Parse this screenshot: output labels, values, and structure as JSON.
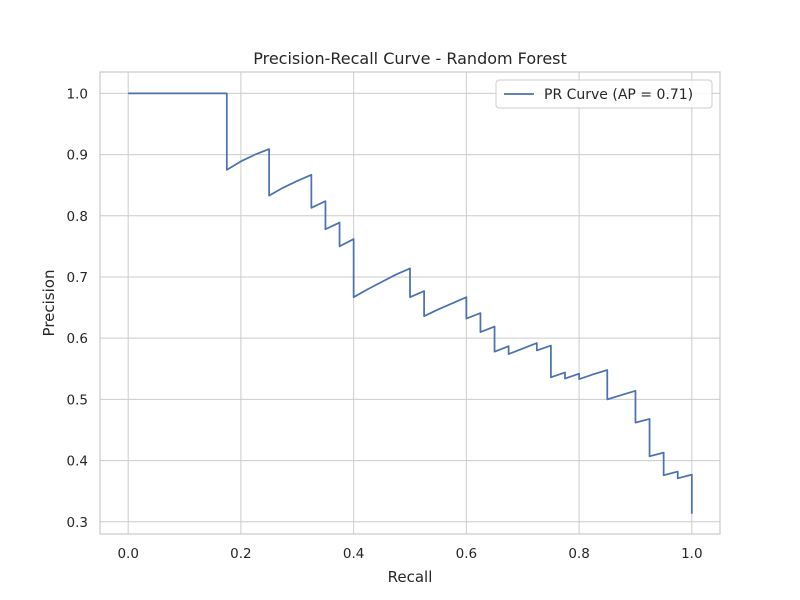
{
  "chart_data": {
    "type": "line",
    "title": "Precision-Recall Curve - Random Forest",
    "xlabel": "Recall",
    "ylabel": "Precision",
    "xlim": [
      -0.05,
      1.05
    ],
    "ylim": [
      0.28,
      1.035
    ],
    "xticks": [
      0.0,
      0.2,
      0.4,
      0.6,
      0.8,
      1.0
    ],
    "xtick_labels": [
      "0.0",
      "0.2",
      "0.4",
      "0.6",
      "0.8",
      "1.0"
    ],
    "yticks": [
      0.3,
      0.4,
      0.5,
      0.6,
      0.7,
      0.8,
      0.9,
      1.0
    ],
    "ytick_labels": [
      "0.3",
      "0.4",
      "0.5",
      "0.6",
      "0.7",
      "0.8",
      "0.9",
      "1.0"
    ],
    "grid": true,
    "legend_position": "top-right",
    "series": [
      {
        "name": "PR Curve (AP = 0.71)",
        "color": "#4c72b0",
        "x": [
          0.0,
          0.175,
          0.175,
          0.2,
          0.225,
          0.25,
          0.25,
          0.275,
          0.3,
          0.325,
          0.325,
          0.35,
          0.35,
          0.375,
          0.375,
          0.4,
          0.4,
          0.425,
          0.45,
          0.475,
          0.5,
          0.5,
          0.525,
          0.525,
          0.55,
          0.575,
          0.6,
          0.6,
          0.625,
          0.625,
          0.65,
          0.65,
          0.675,
          0.675,
          0.7,
          0.725,
          0.725,
          0.75,
          0.75,
          0.775,
          0.775,
          0.8,
          0.8,
          0.825,
          0.85,
          0.85,
          0.875,
          0.9,
          0.9,
          0.925,
          0.925,
          0.95,
          0.95,
          0.975,
          0.975,
          1.0,
          1.0
        ],
        "y": [
          1.0,
          1.0,
          0.875,
          0.889,
          0.9,
          0.909,
          0.833,
          0.846,
          0.857,
          0.867,
          0.813,
          0.824,
          0.778,
          0.789,
          0.75,
          0.762,
          0.667,
          0.68,
          0.692,
          0.704,
          0.714,
          0.667,
          0.677,
          0.636,
          0.647,
          0.657,
          0.667,
          0.632,
          0.641,
          0.61,
          0.619,
          0.578,
          0.587,
          0.574,
          0.583,
          0.592,
          0.58,
          0.588,
          0.536,
          0.544,
          0.534,
          0.542,
          0.533,
          0.541,
          0.548,
          0.5,
          0.507,
          0.514,
          0.462,
          0.468,
          0.407,
          0.413,
          0.376,
          0.382,
          0.371,
          0.377,
          0.313
        ]
      }
    ]
  }
}
